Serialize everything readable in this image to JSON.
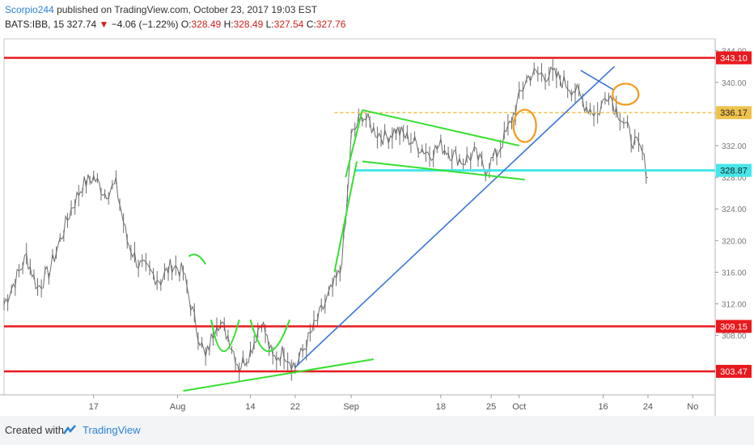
{
  "header": {
    "author": "Scorpio244",
    "published_text": "published on TradingView.com, October 23, 2017 19:03 EST",
    "symbol": "BATS:IBB, 15",
    "last": "327.74",
    "change": "−4.06 (−1.22%)",
    "o_label": "O:",
    "o_value": "328.49",
    "h_label": "H:",
    "h_value": "328.49",
    "l_label": "L:",
    "l_value": "327.54",
    "c_label": "C:",
    "c_value": "327.76"
  },
  "footer": {
    "created_with": "Created with",
    "brand": "TradingView"
  },
  "colors": {
    "support_resistance": "#e8191e",
    "trend_green": "#35e02f",
    "trend_blue": "#3b76d4",
    "cyan_level": "#46e6ea",
    "dashed_level": "#f0c24c",
    "circle": "#f39a1b",
    "candle": "#6b6b6b",
    "down_arrow": "#d0201e"
  },
  "chart_data": {
    "type": "line",
    "title": "",
    "xlabel": "",
    "ylabel": "",
    "ylim": [
      300.5,
      345.5
    ],
    "x_tick_labels": [
      "17",
      "Aug",
      "14",
      "22",
      "Sep",
      "18",
      "25",
      "Oct",
      "16",
      "24",
      "No"
    ],
    "x_tick_days": [
      17,
      32,
      45,
      53,
      63,
      79,
      88,
      93,
      108,
      116,
      124
    ],
    "y_ticks": [
      "344.00",
      "340.00",
      "336.00",
      "332.00",
      "328.00",
      "324.00",
      "320.00",
      "316.00",
      "312.00",
      "308.00",
      "304.00"
    ],
    "y_tick_values": [
      344,
      340,
      336,
      332,
      328,
      324,
      320,
      316,
      312,
      308,
      304
    ],
    "price_labels": [
      {
        "value": 343.1,
        "label": "343.10",
        "color": "#e8191e"
      },
      {
        "value": 336.17,
        "label": "336.17",
        "color": "#f0c24c"
      },
      {
        "value": 328.87,
        "label": "328.87",
        "color": "#46e6ea"
      },
      {
        "value": 309.15,
        "label": "309.15",
        "color": "#e8191e"
      },
      {
        "value": 303.47,
        "label": "303.47",
        "color": "#e8191e"
      }
    ],
    "series": [
      {
        "x": [
          1,
          3,
          5,
          7,
          9,
          11,
          13,
          15,
          17,
          19,
          21,
          23,
          25,
          27,
          29,
          31,
          33,
          35,
          37,
          39,
          41,
          43,
          45,
          47,
          49,
          51,
          53,
          55,
          57,
          59,
          61,
          62,
          63,
          65,
          67,
          69,
          71,
          73,
          75,
          77,
          79,
          81,
          83,
          85,
          87,
          89,
          91,
          92,
          93,
          94,
          95,
          97,
          99,
          101,
          103,
          105,
          107,
          109,
          110,
          111,
          113,
          115,
          116
        ],
        "y": [
          312,
          315,
          318,
          314,
          316,
          320,
          324,
          327,
          328,
          326,
          327,
          320,
          317,
          316,
          315,
          317,
          316,
          310,
          305,
          310,
          308,
          304,
          306,
          310,
          305,
          306,
          304,
          307,
          310,
          313,
          316,
          322,
          333,
          336,
          334,
          333,
          334,
          333,
          332,
          331,
          332,
          331,
          330,
          331,
          329,
          331,
          334,
          336,
          338,
          340,
          341,
          341,
          341,
          340,
          339,
          337,
          336,
          339,
          337,
          336,
          333,
          331,
          328
        ]
      }
    ],
    "horizontal_levels": [
      343.1,
      336.17,
      328.87,
      309.15,
      303.47
    ]
  }
}
